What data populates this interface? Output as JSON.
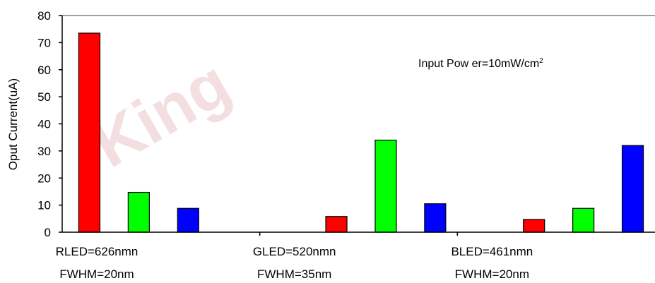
{
  "chart_data": {
    "type": "bar",
    "ylabel": "Oput Current(uA)",
    "ylim": [
      0,
      80
    ],
    "yticks": [
      0,
      10,
      20,
      30,
      40,
      50,
      60,
      70,
      80
    ],
    "grid": false,
    "legend": "none",
    "watermark": "King",
    "annotation": {
      "text": "Input Pow er=10mW/cm",
      "sup": "2"
    },
    "categories": [
      {
        "line1": "RLED=626nmn",
        "line2": "FWHM=20nm"
      },
      {
        "line1": "GLED=520nmn",
        "line2": "FWHM=35nm"
      },
      {
        "line1": "BLED=461nmn",
        "line2": "FWHM=20nm"
      }
    ],
    "series": [
      {
        "color": "#ff0000",
        "values": [
          73.5,
          5.8,
          4.7
        ]
      },
      {
        "color": "#00ff00",
        "values": [
          14.7,
          34.0,
          8.8
        ]
      },
      {
        "color": "#0000ff",
        "values": [
          8.8,
          10.5,
          32.0
        ]
      }
    ]
  }
}
